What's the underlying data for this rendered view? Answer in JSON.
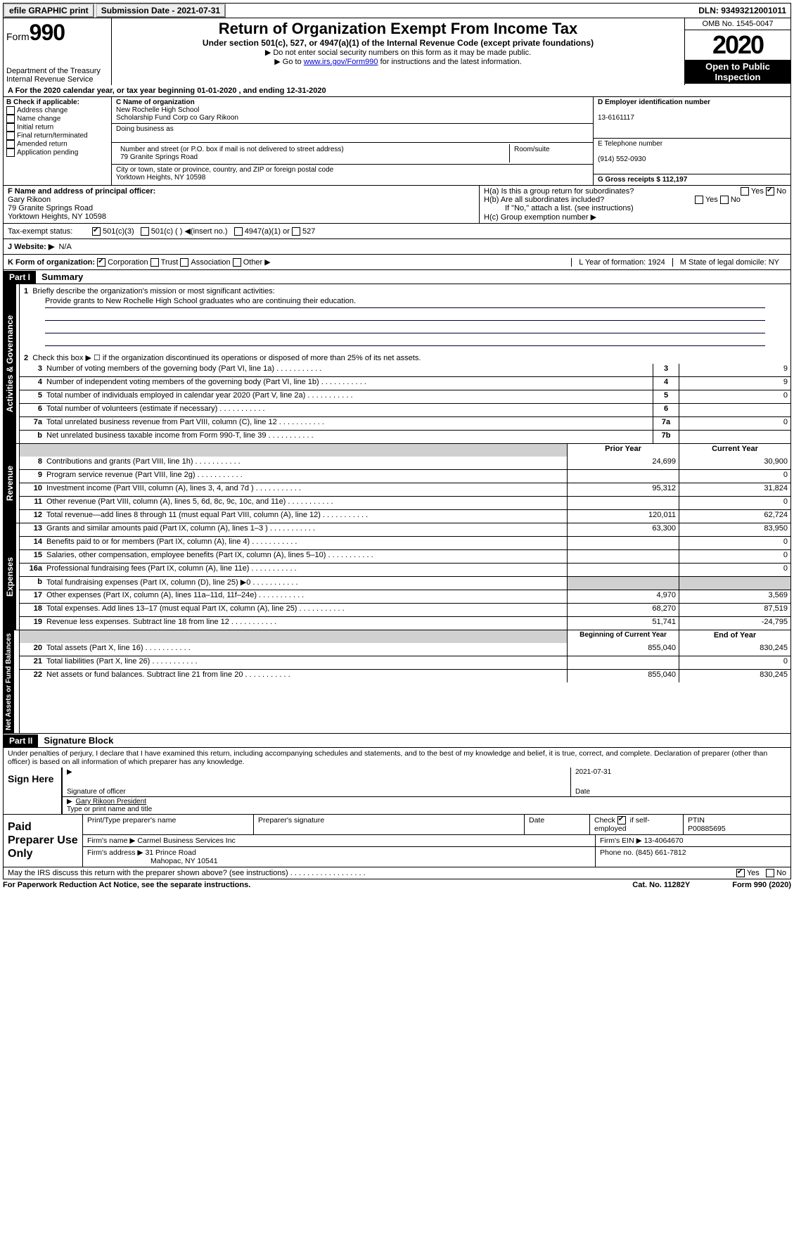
{
  "topbar": {
    "efile": "efile GRAPHIC print",
    "submission_label": "Submission Date - 2021-07-31",
    "dln_label": "DLN: 93493212001011"
  },
  "header": {
    "form_prefix": "Form",
    "form_number": "990",
    "dept": "Department of the Treasury",
    "irs": "Internal Revenue Service",
    "title": "Return of Organization Exempt From Income Tax",
    "subtitle": "Under section 501(c), 527, or 4947(a)(1) of the Internal Revenue Code (except private foundations)",
    "note1": "▶ Do not enter social security numbers on this form as it may be made public.",
    "note2_pre": "▶ Go to ",
    "note2_link": "www.irs.gov/Form990",
    "note2_post": " for instructions and the latest information.",
    "omb": "OMB No. 1545-0047",
    "year": "2020",
    "open": "Open to Public Inspection"
  },
  "rowA": "A For the 2020 calendar year, or tax year beginning 01-01-2020    , and ending 12-31-2020",
  "boxB": {
    "label": "B Check if applicable:",
    "items": [
      "Address change",
      "Name change",
      "Initial return",
      "Final return/terminated",
      "Amended return",
      "Application pending"
    ]
  },
  "boxC": {
    "name_label": "C Name of organization",
    "name1": "New Rochelle High School",
    "name2": "Scholarship Fund Corp co Gary Rikoon",
    "dba_label": "Doing business as",
    "street_label": "Number and street (or P.O. box if mail is not delivered to street address)",
    "room_label": "Room/suite",
    "street": "79 Granite Springs Road",
    "city_label": "City or town, state or province, country, and ZIP or foreign postal code",
    "city": "Yorktown Heights, NY  10598"
  },
  "boxD": {
    "label": "D Employer identification number",
    "val": "13-6161117"
  },
  "boxE": {
    "label": "E Telephone number",
    "val": "(914) 552-0930"
  },
  "boxG": {
    "label": "G Gross receipts $ 112,197"
  },
  "boxF": {
    "label": "F  Name and address of principal officer:",
    "name": "Gary Rikoon",
    "l1": "79 Granite Springs Road",
    "l2": "Yorktown Heights, NY  10598"
  },
  "boxH": {
    "a": "H(a)  Is this a group return for subordinates?",
    "b": "H(b)  Are all subordinates included?",
    "bnote": "If \"No,\" attach a list. (see instructions)",
    "c": "H(c)  Group exemption number ▶",
    "yes": "Yes",
    "no": "No"
  },
  "taxI": {
    "label": "Tax-exempt status:",
    "c3": "501(c)(3)",
    "c": "501(c) (  ) ◀(insert no.)",
    "a": "4947(a)(1) or",
    "s": "527"
  },
  "taxJ": {
    "label": "J   Website: ▶",
    "val": "N/A"
  },
  "taxK": {
    "label": "K Form of organization:",
    "corp": "Corporation",
    "trust": "Trust",
    "assoc": "Association",
    "other": "Other ▶",
    "L": "L Year of formation: 1924",
    "M": "M State of legal domicile: NY"
  },
  "partI": {
    "hdr": "Part I",
    "title": "Summary"
  },
  "summary": {
    "q1": "Briefly describe the organization's mission or most significant activities:",
    "mission": "Provide grants to New Rochelle High School graduates who are continuing their education.",
    "q2": "Check this box ▶ ☐  if the organization discontinued its operations or disposed of more than 25% of its net assets.",
    "lines": [
      {
        "n": "3",
        "d": "Number of voting members of the governing body (Part VI, line 1a)",
        "box": "3",
        "v": "9"
      },
      {
        "n": "4",
        "d": "Number of independent voting members of the governing body (Part VI, line 1b)",
        "box": "4",
        "v": "9"
      },
      {
        "n": "5",
        "d": "Total number of individuals employed in calendar year 2020 (Part V, line 2a)",
        "box": "5",
        "v": "0"
      },
      {
        "n": "6",
        "d": "Total number of volunteers (estimate if necessary)",
        "box": "6",
        "v": ""
      },
      {
        "n": "7a",
        "d": "Total unrelated business revenue from Part VIII, column (C), line 12",
        "box": "7a",
        "v": "0"
      },
      {
        "n": "b",
        "d": "Net unrelated business taxable income from Form 990-T, line 39",
        "box": "7b",
        "v": ""
      }
    ]
  },
  "revenue": {
    "tab": "Revenue",
    "hdr_prior": "Prior Year",
    "hdr_curr": "Current Year",
    "rows": [
      {
        "n": "8",
        "d": "Contributions and grants (Part VIII, line 1h)",
        "p": "24,699",
        "c": "30,900"
      },
      {
        "n": "9",
        "d": "Program service revenue (Part VIII, line 2g)",
        "p": "",
        "c": "0"
      },
      {
        "n": "10",
        "d": "Investment income (Part VIII, column (A), lines 3, 4, and 7d )",
        "p": "95,312",
        "c": "31,824"
      },
      {
        "n": "11",
        "d": "Other revenue (Part VIII, column (A), lines 5, 6d, 8c, 9c, 10c, and 11e)",
        "p": "",
        "c": "0"
      },
      {
        "n": "12",
        "d": "Total revenue—add lines 8 through 11 (must equal Part VIII, column (A), line 12)",
        "p": "120,011",
        "c": "62,724"
      }
    ]
  },
  "expenses": {
    "tab": "Expenses",
    "rows": [
      {
        "n": "13",
        "d": "Grants and similar amounts paid (Part IX, column (A), lines 1–3 )",
        "p": "63,300",
        "c": "83,950"
      },
      {
        "n": "14",
        "d": "Benefits paid to or for members (Part IX, column (A), line 4)",
        "p": "",
        "c": "0"
      },
      {
        "n": "15",
        "d": "Salaries, other compensation, employee benefits (Part IX, column (A), lines 5–10)",
        "p": "",
        "c": "0"
      },
      {
        "n": "16a",
        "d": "Professional fundraising fees (Part IX, column (A), line 11e)",
        "p": "",
        "c": "0"
      },
      {
        "n": "b",
        "d": "Total fundraising expenses (Part IX, column (D), line 25) ▶0",
        "p": "GREY",
        "c": "GREY"
      },
      {
        "n": "17",
        "d": "Other expenses (Part IX, column (A), lines 11a–11d, 11f–24e)",
        "p": "4,970",
        "c": "3,569"
      },
      {
        "n": "18",
        "d": "Total expenses. Add lines 13–17 (must equal Part IX, column (A), line 25)",
        "p": "68,270",
        "c": "87,519"
      },
      {
        "n": "19",
        "d": "Revenue less expenses. Subtract line 18 from line 12",
        "p": "51,741",
        "c": "-24,795"
      }
    ]
  },
  "netassets": {
    "tab": "Net Assets or Fund Balances",
    "hdr_beg": "Beginning of Current Year",
    "hdr_end": "End of Year",
    "rows": [
      {
        "n": "20",
        "d": "Total assets (Part X, line 16)",
        "p": "855,040",
        "c": "830,245"
      },
      {
        "n": "21",
        "d": "Total liabilities (Part X, line 26)",
        "p": "",
        "c": "0"
      },
      {
        "n": "22",
        "d": "Net assets or fund balances. Subtract line 21 from line 20",
        "p": "855,040",
        "c": "830,245"
      }
    ]
  },
  "partII": {
    "hdr": "Part II",
    "title": "Signature Block"
  },
  "sig": {
    "intro": "Under penalties of perjury, I declare that I have examined this return, including accompanying schedules and statements, and to the best of my knowledge and belief, it is true, correct, and complete. Declaration of preparer (other than officer) is based on all information of which preparer has any knowledge.",
    "sign_here": "Sign Here",
    "sig_officer": "Signature of officer",
    "date": "2021-07-31",
    "date_lbl": "Date",
    "name": "Gary Rikoon President",
    "name_lbl": "Type or print name and title"
  },
  "prep": {
    "label": "Paid Preparer Use Only",
    "h1": "Print/Type preparer's name",
    "h2": "Preparer's signature",
    "h3": "Date",
    "h4a": "Check",
    "h4b": "if self-employed",
    "h5": "PTIN",
    "ptin": "P00885695",
    "firm_label": "Firm's name   ▶",
    "firm": "Carmel Business Services Inc",
    "ein_label": "Firm's EIN ▶",
    "ein": "13-4064670",
    "addr_label": "Firm's address ▶",
    "addr1": "31 Prince Road",
    "addr2": "Mahopac, NY  10541",
    "phone_label": "Phone no.",
    "phone": "(845) 661-7812"
  },
  "discuss": {
    "q": "May the IRS discuss this return with the preparer shown above? (see instructions)",
    "yes": "Yes",
    "no": "No"
  },
  "footer": {
    "l": "For Paperwork Reduction Act Notice, see the separate instructions.",
    "m": "Cat. No. 11282Y",
    "r": "Form 990 (2020)"
  },
  "tabs": {
    "gov": "Activities & Governance"
  }
}
